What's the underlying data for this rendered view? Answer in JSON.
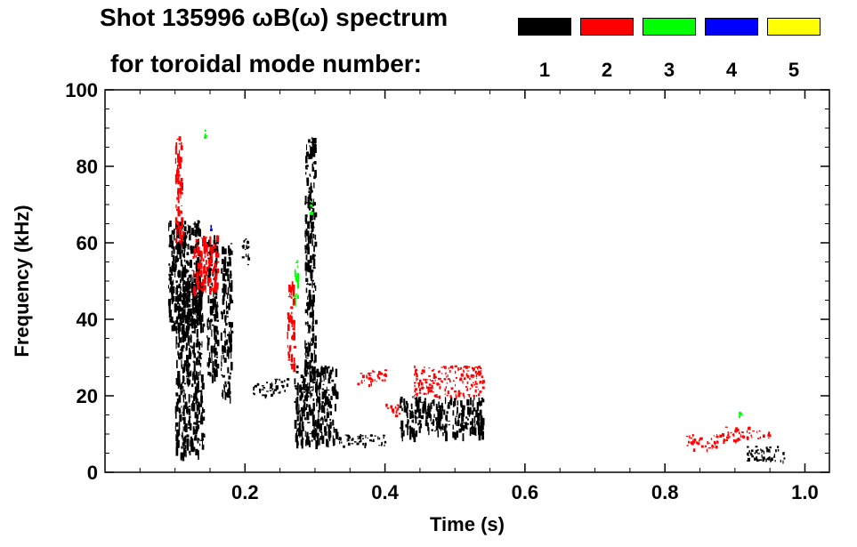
{
  "header": {
    "title_line1": "Shot 135996 ωB(ω) spectrum",
    "title_line2": "for toroidal mode number:"
  },
  "legend": [
    {
      "label": "1",
      "color": "#000000"
    },
    {
      "label": "2",
      "color": "#ff0000"
    },
    {
      "label": "3",
      "color": "#00ff00"
    },
    {
      "label": "4",
      "color": "#0000ff"
    },
    {
      "label": "5",
      "color": "#ffff00"
    }
  ],
  "chart_data": {
    "type": "heatmap",
    "xlabel": "Time (s)",
    "ylabel": "Frequency (kHz)",
    "xlim": [
      0.0,
      1.035
    ],
    "ylim": [
      0,
      100
    ],
    "xticks": [
      0.2,
      0.4,
      0.6,
      0.8,
      1.0
    ],
    "xtick_labels": [
      "0.2",
      "0.4",
      "0.6",
      "0.8",
      "1.0"
    ],
    "yticks": [
      0,
      20,
      40,
      60,
      80,
      100
    ],
    "ytick_labels": [
      "0",
      "20",
      "40",
      "60",
      "80",
      "100"
    ],
    "grid": false,
    "legend_position": "top-right",
    "series": [
      {
        "mode": 1,
        "color": "#000000",
        "regions": [
          {
            "t": [
              0.09,
              0.135
            ],
            "f": [
              38,
              66
            ]
          },
          {
            "t": [
              0.1,
              0.14
            ],
            "f": [
              5,
              50
            ]
          },
          {
            "t": [
              0.145,
              0.16
            ],
            "f": [
              25,
              62
            ]
          },
          {
            "t": [
              0.165,
              0.18
            ],
            "f": [
              20,
              60
            ]
          },
          {
            "t": [
              0.195,
              0.205
            ],
            "f": [
              54,
              62
            ]
          },
          {
            "t": [
              0.21,
              0.24
            ],
            "f": [
              20,
              24
            ]
          },
          {
            "t": [
              0.24,
              0.26
            ],
            "f": [
              21,
              25
            ]
          },
          {
            "t": [
              0.27,
              0.33
            ],
            "f": [
              8,
              28
            ]
          },
          {
            "t": [
              0.285,
              0.3
            ],
            "f": [
              25,
              88
            ]
          },
          {
            "t": [
              0.33,
              0.4
            ],
            "f": [
              7,
              10
            ]
          },
          {
            "t": [
              0.42,
              0.54
            ],
            "f": [
              10,
              20
            ]
          },
          {
            "t": [
              0.915,
              0.97
            ],
            "f": [
              3,
              7
            ]
          }
        ]
      },
      {
        "mode": 2,
        "color": "#ff0000",
        "regions": [
          {
            "t": [
              0.1,
              0.11
            ],
            "f": [
              60,
              88
            ]
          },
          {
            "t": [
              0.125,
              0.16
            ],
            "f": [
              48,
              62
            ]
          },
          {
            "t": [
              0.26,
              0.27
            ],
            "f": [
              28,
              50
            ]
          },
          {
            "t": [
              0.36,
              0.4
            ],
            "f": [
              23,
              27
            ]
          },
          {
            "t": [
              0.4,
              0.42
            ],
            "f": [
              15,
              18
            ]
          },
          {
            "t": [
              0.44,
              0.54
            ],
            "f": [
              20,
              28
            ]
          },
          {
            "t": [
              0.83,
              0.88
            ],
            "f": [
              6,
              10
            ]
          },
          {
            "t": [
              0.88,
              0.92
            ],
            "f": [
              8,
              12
            ]
          },
          {
            "t": [
              0.92,
              0.95
            ],
            "f": [
              9,
              11
            ]
          }
        ]
      },
      {
        "mode": 3,
        "color": "#00ff00",
        "regions": [
          {
            "t": [
              0.27,
              0.275
            ],
            "f": [
              45,
              58
            ]
          },
          {
            "t": [
              0.29,
              0.295
            ],
            "f": [
              68,
              72
            ]
          },
          {
            "t": [
              0.905,
              0.915
            ],
            "f": [
              15,
              16
            ]
          },
          {
            "t": [
              0.14,
              0.145
            ],
            "f": [
              88,
              90
            ]
          }
        ]
      },
      {
        "mode": 4,
        "color": "#0000ff",
        "regions": [
          {
            "t": [
              0.15,
              0.155
            ],
            "f": [
              63,
              65
            ]
          }
        ]
      },
      {
        "mode": 5,
        "color": "#ffff00",
        "regions": []
      }
    ]
  }
}
